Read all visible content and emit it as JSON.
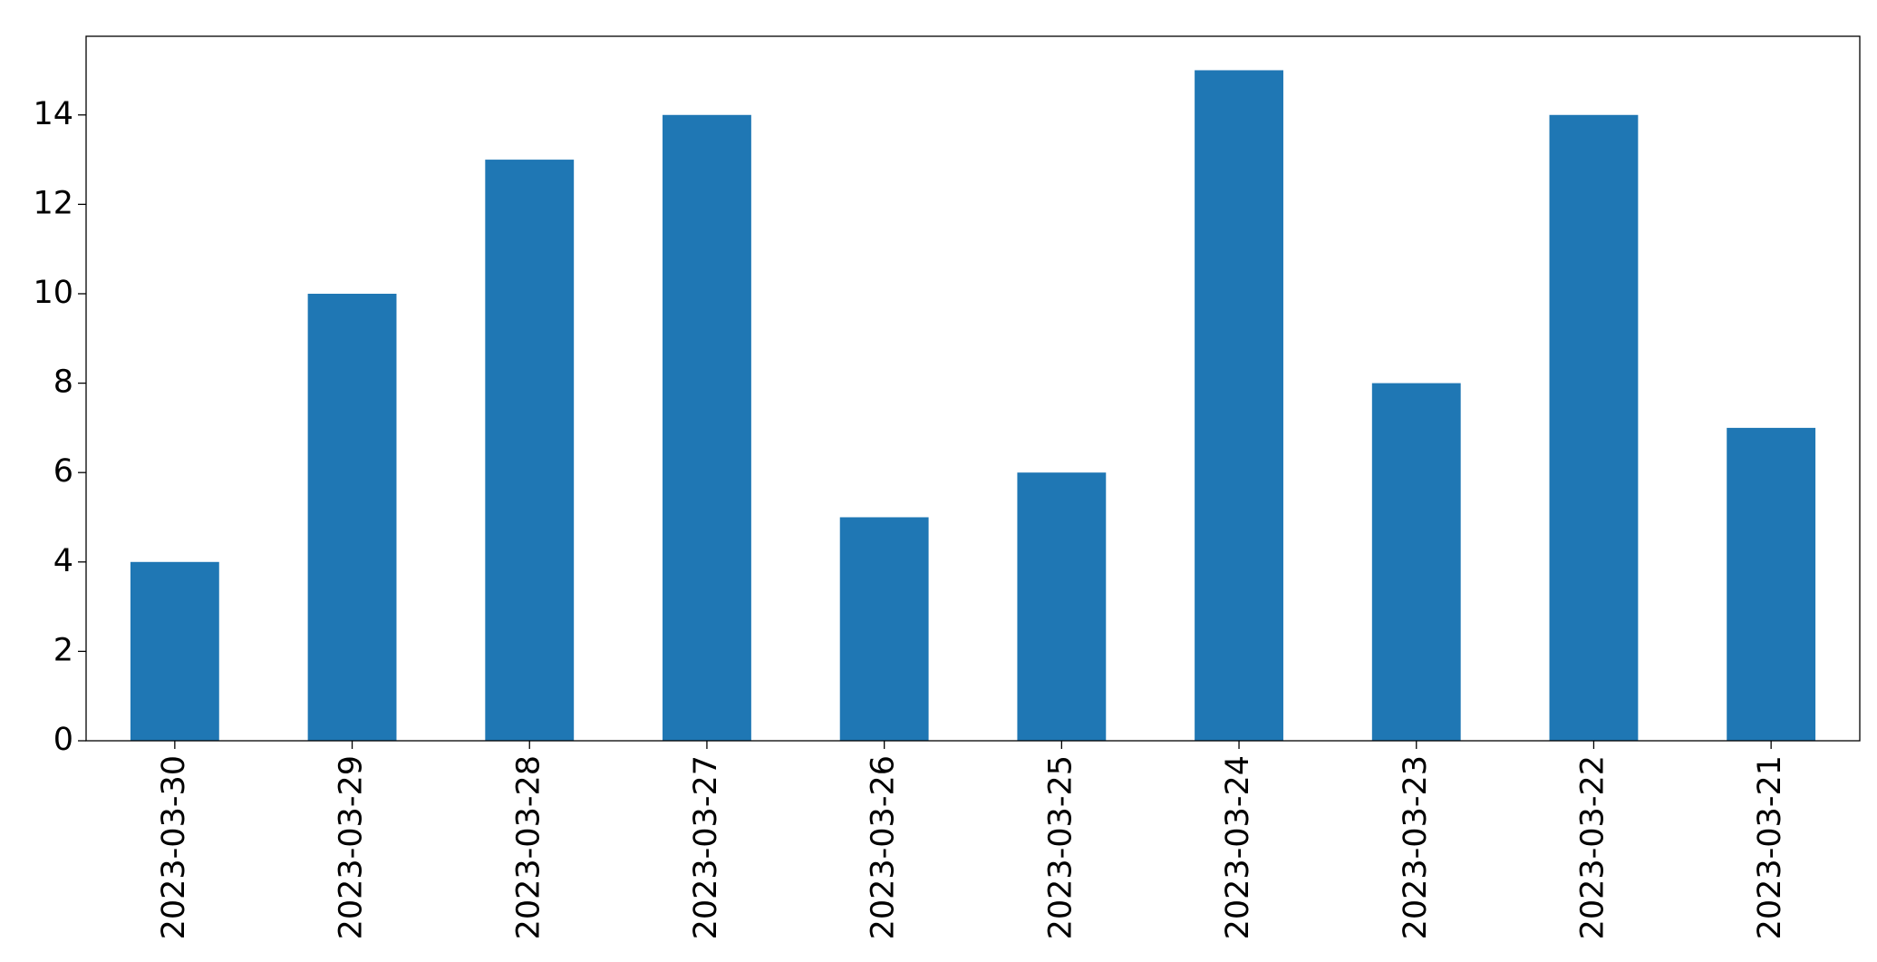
{
  "chart_data": {
    "type": "bar",
    "categories": [
      "2023-03-30",
      "2023-03-29",
      "2023-03-28",
      "2023-03-27",
      "2023-03-26",
      "2023-03-25",
      "2023-03-24",
      "2023-03-23",
      "2023-03-22",
      "2023-03-21"
    ],
    "values": [
      4,
      10,
      13,
      14,
      5,
      6,
      15,
      8,
      14,
      7
    ],
    "color": "#1f77b4",
    "ylim": [
      0,
      15.76
    ],
    "yticks": [
      0,
      2,
      4,
      6,
      8,
      10,
      12,
      14
    ],
    "grid": false
  }
}
